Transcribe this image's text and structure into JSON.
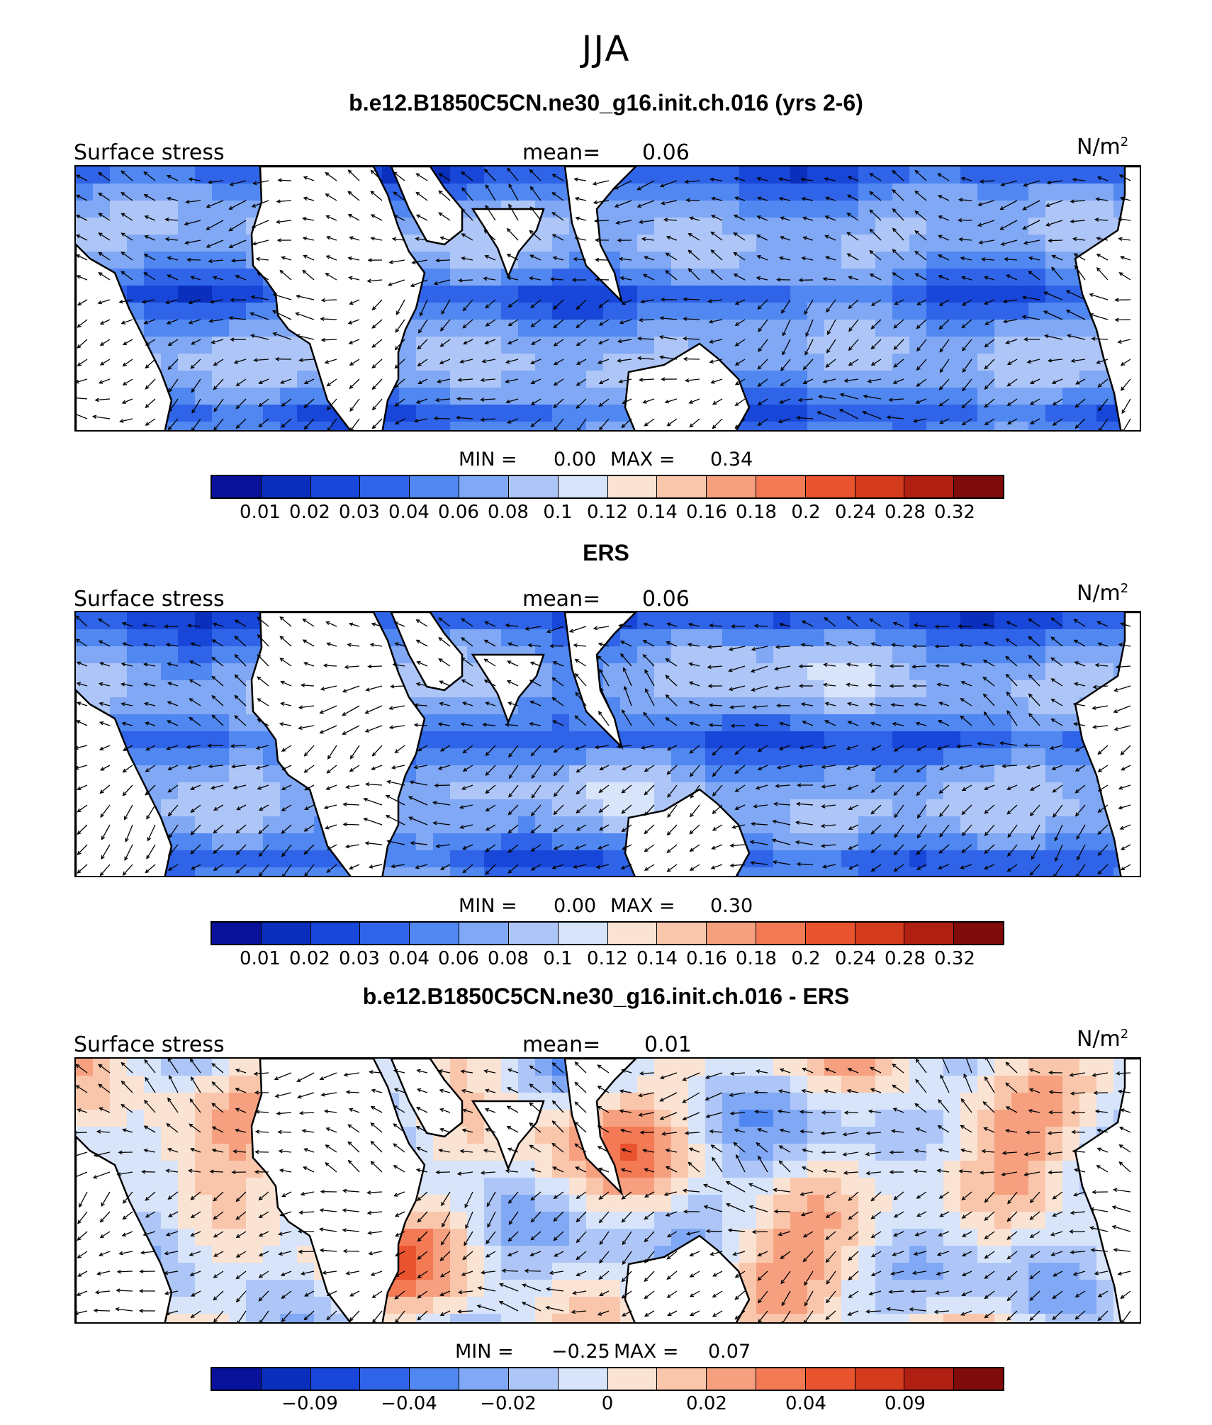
{
  "figure_title": "JJA",
  "panels": [
    {
      "title": "b.e12.B1850C5CN.ne30_g16.init.ch.016 (yrs 2-6)",
      "left_label": "Surface stress",
      "mean_label": "mean=",
      "mean_value": "0.06",
      "units": "N/m",
      "units_exp": "2",
      "min_label": "MIN =",
      "min_value": "0.00",
      "max_label": "MAX =",
      "max_value": "0.34",
      "colorbar_labels": [
        "0.01",
        "0.02",
        "0.03",
        "0.04",
        "0.06",
        "0.08",
        "0.1",
        "0.12",
        "0.14",
        "0.16",
        "0.18",
        "0.2",
        "0.24",
        "0.28",
        "0.32"
      ]
    },
    {
      "title": "ERS",
      "left_label": "Surface stress",
      "mean_label": "mean=",
      "mean_value": "0.06",
      "units": "N/m",
      "units_exp": "2",
      "min_label": "MIN =",
      "min_value": "0.00",
      "max_label": "MAX =",
      "max_value": "0.30",
      "colorbar_labels": [
        "0.01",
        "0.02",
        "0.03",
        "0.04",
        "0.06",
        "0.08",
        "0.1",
        "0.12",
        "0.14",
        "0.16",
        "0.18",
        "0.2",
        "0.24",
        "0.28",
        "0.32"
      ]
    },
    {
      "title": "b.e12.B1850C5CN.ne30_g16.init.ch.016 - ERS",
      "left_label": "Surface stress",
      "mean_label": "mean=",
      "mean_value": "0.01",
      "units": "N/m",
      "units_exp": "2",
      "min_label": "MIN =",
      "min_value": "−0.25",
      "max_label": "MAX =",
      "max_value": "0.07",
      "colorbar_labels": [
        "−0.09",
        "−0.04",
        "−0.02",
        "0",
        "0.02",
        "0.04",
        "0.09"
      ]
    }
  ],
  "colormap": [
    "#08119a",
    "#0a2fbd",
    "#1746d8",
    "#2f64e8",
    "#5087f0",
    "#80a8f4",
    "#aec6f7",
    "#d7e4fa",
    "#fbe3d3",
    "#f9c6ab",
    "#f6a080",
    "#f37a55",
    "#e9532e",
    "#d43a1c",
    "#b02012",
    "#7f0b0b"
  ]
}
